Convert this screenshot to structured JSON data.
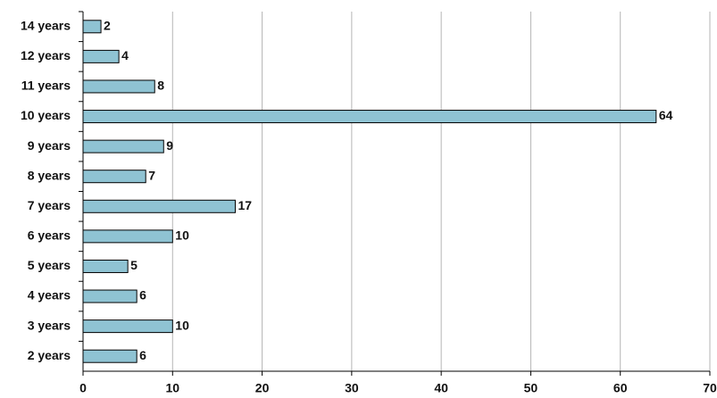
{
  "chart_data": {
    "type": "bar",
    "orientation": "horizontal",
    "categories": [
      "14 years",
      "12 years",
      "11 years",
      "10 years",
      "9 years",
      "8 years",
      "7 years",
      "6 years",
      "5 years",
      "4 years",
      "3 years",
      "2 years"
    ],
    "values": [
      2,
      4,
      8,
      64,
      9,
      7,
      17,
      10,
      5,
      6,
      10,
      6
    ],
    "color": "#8fc3d3",
    "xlim": [
      0,
      70
    ],
    "xticks": [
      0,
      10,
      20,
      30,
      40,
      50,
      60,
      70
    ],
    "grid": true
  }
}
